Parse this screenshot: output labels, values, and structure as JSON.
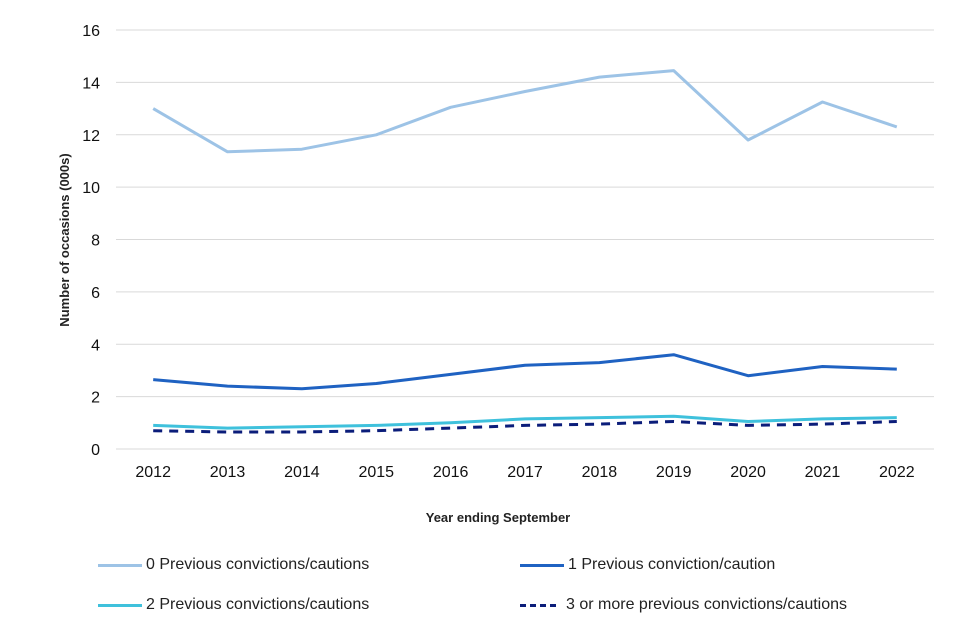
{
  "chart_data": {
    "type": "line",
    "title": "",
    "xlabel": "Year ending September",
    "ylabel": "Number of occasions (000s)",
    "ylim": [
      0,
      16
    ],
    "yticks": [
      0,
      2,
      4,
      6,
      8,
      10,
      12,
      14,
      16
    ],
    "grid": true,
    "legend_position": "bottom",
    "categories": [
      "2012",
      "2013",
      "2014",
      "2015",
      "2016",
      "2017",
      "2018",
      "2019",
      "2020",
      "2021",
      "2022"
    ],
    "series": [
      {
        "name": "0 Previous convictions/cautions",
        "color": "#9dc3e6",
        "dashed": false,
        "values": [
          13.0,
          11.35,
          11.45,
          12.0,
          13.05,
          13.65,
          14.2,
          14.45,
          11.8,
          13.25,
          12.3
        ]
      },
      {
        "name": "1 Previous conviction/caution",
        "color": "#1f62c2",
        "dashed": false,
        "values": [
          2.65,
          2.4,
          2.3,
          2.5,
          2.85,
          3.2,
          3.3,
          3.6,
          2.8,
          3.15,
          3.05
        ]
      },
      {
        "name": "2 Previous convictions/cautions",
        "color": "#3fc1dc",
        "dashed": false,
        "values": [
          0.9,
          0.8,
          0.85,
          0.9,
          1.0,
          1.15,
          1.2,
          1.25,
          1.05,
          1.15,
          1.2
        ]
      },
      {
        "name": "3 or more previous convictions/cautions",
        "color": "#0b1d7a",
        "dashed": true,
        "values": [
          0.7,
          0.65,
          0.65,
          0.7,
          0.8,
          0.9,
          0.95,
          1.05,
          0.9,
          0.95,
          1.05
        ]
      }
    ]
  }
}
